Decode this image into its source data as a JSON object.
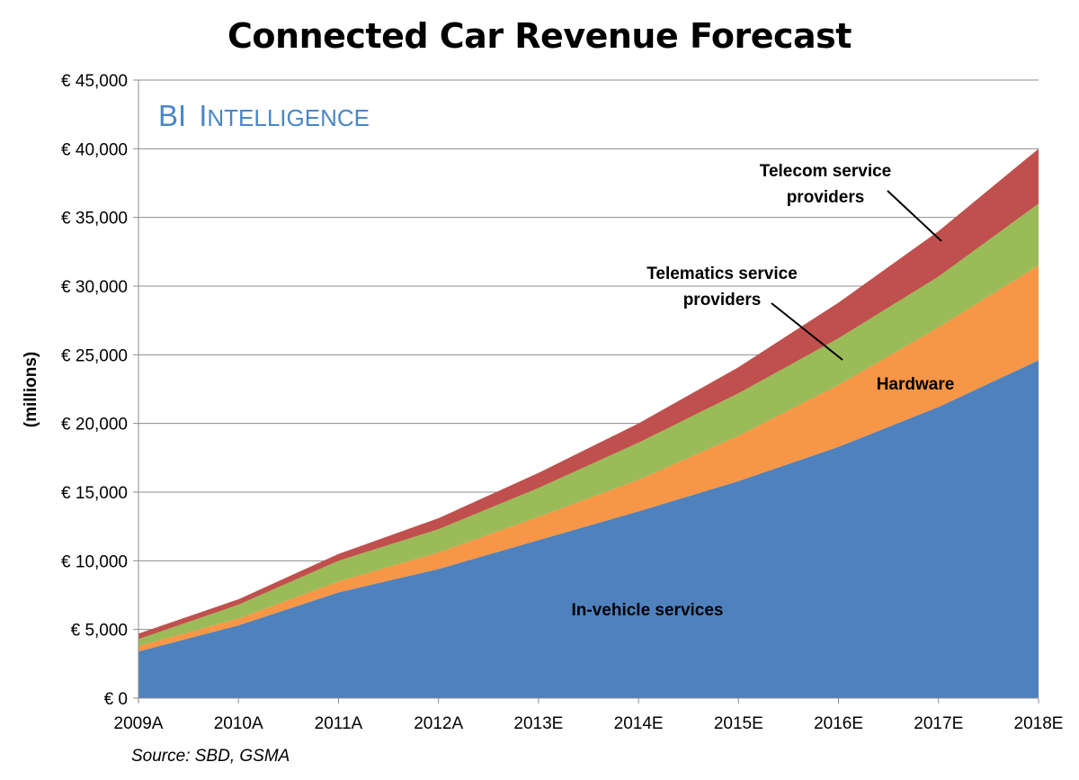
{
  "chart_data": {
    "type": "area",
    "stacked": true,
    "title": "Connected Car Revenue Forecast",
    "ylabel": "(millions)",
    "xlabel": "",
    "ylim": [
      0,
      45000
    ],
    "yticks": [
      0,
      5000,
      10000,
      15000,
      20000,
      25000,
      30000,
      35000,
      40000,
      45000
    ],
    "ytick_labels": [
      "€ 0",
      "€ 5,000",
      "€ 10,000",
      "€ 15,000",
      "€ 20,000",
      "€ 25,000",
      "€ 30,000",
      "€ 35,000",
      "€ 40,000",
      "€ 45,000"
    ],
    "categories": [
      "2009A",
      "2010A",
      "2011A",
      "2012A",
      "2013E",
      "2014E",
      "2015E",
      "2016E",
      "2017E",
      "2018E"
    ],
    "grid": "horizontal",
    "series": [
      {
        "name": "In-vehicle services",
        "color": "#4f81bd",
        "values": [
          3400,
          5300,
          7700,
          9400,
          11500,
          13600,
          15800,
          18300,
          21200,
          24600
        ]
      },
      {
        "name": "Hardware",
        "color": "#f79646",
        "values": [
          400,
          500,
          800,
          1200,
          1700,
          2300,
          3300,
          4500,
          5800,
          6900
        ]
      },
      {
        "name": "Telematics service providers",
        "color": "#9bbb59",
        "values": [
          500,
          1000,
          1500,
          1700,
          2100,
          2700,
          3100,
          3400,
          3700,
          4500
        ]
      },
      {
        "name": "Telecom service providers",
        "color": "#c0504d",
        "values": [
          400,
          400,
          500,
          800,
          1100,
          1400,
          1900,
          2600,
          3300,
          4000
        ]
      }
    ],
    "annotations": {
      "telecom_line1": "Telecom service",
      "telecom_line2": "providers",
      "telematics_line1": "Telematics service",
      "telematics_line2": "providers",
      "hardware": "Hardware",
      "invehicle": "In-vehicle services"
    },
    "watermark": {
      "part1": "BI",
      "part2": "I",
      "part3": "NTELLIGENCE"
    },
    "source": "Source: SBD, GSMA"
  }
}
